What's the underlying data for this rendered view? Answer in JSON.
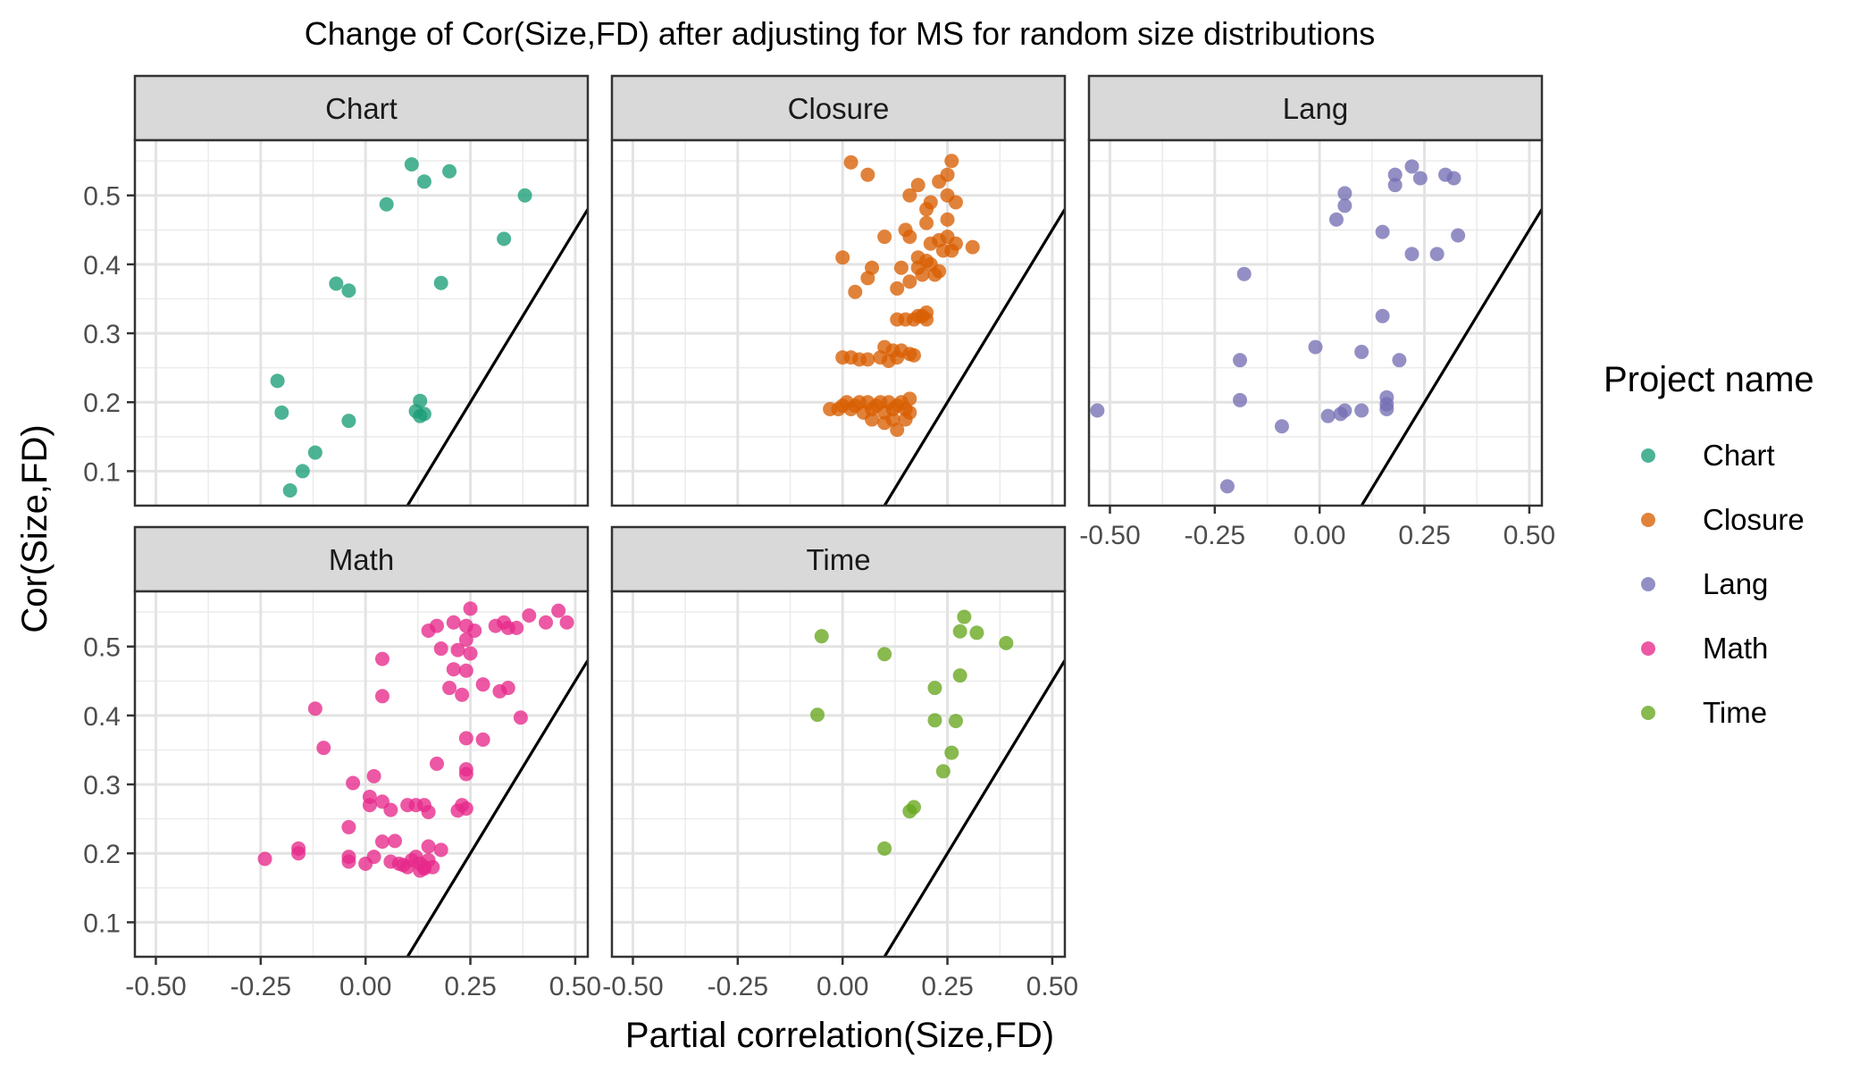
{
  "chart_data": {
    "type": "scatter",
    "title": "Change of Cor(Size,FD) after adjusting for MS for random size distributions",
    "xlabel": "Partial correlation(Size,FD)",
    "ylabel": "Cor(Size,FD)",
    "xlim": [
      -0.55,
      0.53
    ],
    "ylim": [
      0.05,
      0.58
    ],
    "x_ticks": [
      -0.5,
      -0.25,
      0.0,
      0.25,
      0.5
    ],
    "x_tick_labels": [
      "-0.50",
      "-0.25",
      "0.00",
      "0.25",
      "0.50"
    ],
    "y_ticks": [
      0.1,
      0.2,
      0.3,
      0.4,
      0.5
    ],
    "y_tick_labels": [
      "0.1",
      "0.2",
      "0.3",
      "0.4",
      "0.5"
    ],
    "grid": true,
    "reference_line": {
      "intercept": -0.05,
      "slope": 1
    },
    "legend": {
      "title": "Project name",
      "position": "right"
    },
    "facets": [
      "Chart",
      "Closure",
      "Lang",
      "Math",
      "Time"
    ],
    "series": [
      {
        "name": "Chart",
        "color": "#1B9E77",
        "points": [
          [
            0.11,
            0.545
          ],
          [
            0.14,
            0.52
          ],
          [
            0.2,
            0.535
          ],
          [
            0.38,
            0.5
          ],
          [
            0.05,
            0.487
          ],
          [
            0.33,
            0.437
          ],
          [
            -0.07,
            0.372
          ],
          [
            -0.04,
            0.362
          ],
          [
            0.18,
            0.373
          ],
          [
            -0.21,
            0.231
          ],
          [
            -0.2,
            0.185
          ],
          [
            0.13,
            0.202
          ],
          [
            0.12,
            0.187
          ],
          [
            0.13,
            0.18
          ],
          [
            0.14,
            0.183
          ],
          [
            -0.04,
            0.173
          ],
          [
            -0.12,
            0.127
          ],
          [
            -0.15,
            0.1
          ],
          [
            -0.18,
            0.072
          ]
        ]
      },
      {
        "name": "Closure",
        "color": "#D95F02",
        "points": [
          [
            0.02,
            0.548
          ],
          [
            0.06,
            0.53
          ],
          [
            0.26,
            0.55
          ],
          [
            0.23,
            0.52
          ],
          [
            0.18,
            0.515
          ],
          [
            0.25,
            0.53
          ],
          [
            0.16,
            0.5
          ],
          [
            0.25,
            0.5
          ],
          [
            0.27,
            0.49
          ],
          [
            0.21,
            0.49
          ],
          [
            0.2,
            0.48
          ],
          [
            0.15,
            0.45
          ],
          [
            0.2,
            0.46
          ],
          [
            0.25,
            0.465
          ],
          [
            0.1,
            0.44
          ],
          [
            0.16,
            0.44
          ],
          [
            0.21,
            0.43
          ],
          [
            0.23,
            0.435
          ],
          [
            0.25,
            0.44
          ],
          [
            0.27,
            0.43
          ],
          [
            0.24,
            0.42
          ],
          [
            0.26,
            0.42
          ],
          [
            0.31,
            0.425
          ],
          [
            0.18,
            0.41
          ],
          [
            0.2,
            0.405
          ],
          [
            0.0,
            0.41
          ],
          [
            0.07,
            0.395
          ],
          [
            0.14,
            0.395
          ],
          [
            0.18,
            0.395
          ],
          [
            0.21,
            0.4
          ],
          [
            0.23,
            0.39
          ],
          [
            0.19,
            0.385
          ],
          [
            0.06,
            0.38
          ],
          [
            0.03,
            0.36
          ],
          [
            0.22,
            0.385
          ],
          [
            0.13,
            0.365
          ],
          [
            0.16,
            0.375
          ],
          [
            0.17,
            0.32
          ],
          [
            0.19,
            0.325
          ],
          [
            0.2,
            0.33
          ],
          [
            0.18,
            0.325
          ],
          [
            0.13,
            0.32
          ],
          [
            0.15,
            0.32
          ],
          [
            0.2,
            0.32
          ],
          [
            0.1,
            0.28
          ],
          [
            0.12,
            0.275
          ],
          [
            0.14,
            0.275
          ],
          [
            0.16,
            0.27
          ],
          [
            0.17,
            0.268
          ],
          [
            0.0,
            0.265
          ],
          [
            0.02,
            0.265
          ],
          [
            0.04,
            0.262
          ],
          [
            0.06,
            0.262
          ],
          [
            0.09,
            0.265
          ],
          [
            0.11,
            0.26
          ],
          [
            0.13,
            0.265
          ],
          [
            -0.03,
            0.19
          ],
          [
            -0.01,
            0.19
          ],
          [
            0.0,
            0.195
          ],
          [
            0.01,
            0.2
          ],
          [
            0.02,
            0.19
          ],
          [
            0.03,
            0.195
          ],
          [
            0.04,
            0.2
          ],
          [
            0.05,
            0.185
          ],
          [
            0.06,
            0.2
          ],
          [
            0.07,
            0.19
          ],
          [
            0.08,
            0.195
          ],
          [
            0.09,
            0.2
          ],
          [
            0.1,
            0.185
          ],
          [
            0.11,
            0.2
          ],
          [
            0.12,
            0.19
          ],
          [
            0.13,
            0.195
          ],
          [
            0.14,
            0.2
          ],
          [
            0.15,
            0.19
          ],
          [
            0.16,
            0.185
          ],
          [
            0.07,
            0.175
          ],
          [
            0.1,
            0.17
          ],
          [
            0.12,
            0.175
          ],
          [
            0.15,
            0.175
          ],
          [
            0.13,
            0.16
          ],
          [
            0.16,
            0.205
          ]
        ]
      },
      {
        "name": "Lang",
        "color": "#7570B3",
        "points": [
          [
            0.22,
            0.542
          ],
          [
            0.18,
            0.53
          ],
          [
            0.24,
            0.525
          ],
          [
            0.3,
            0.53
          ],
          [
            0.32,
            0.525
          ],
          [
            0.18,
            0.515
          ],
          [
            0.06,
            0.503
          ],
          [
            0.06,
            0.485
          ],
          [
            0.04,
            0.465
          ],
          [
            0.15,
            0.447
          ],
          [
            0.33,
            0.442
          ],
          [
            0.22,
            0.415
          ],
          [
            0.28,
            0.415
          ],
          [
            -0.18,
            0.386
          ],
          [
            0.15,
            0.325
          ],
          [
            -0.01,
            0.28
          ],
          [
            0.1,
            0.273
          ],
          [
            -0.19,
            0.261
          ],
          [
            0.19,
            0.261
          ],
          [
            -0.19,
            0.203
          ],
          [
            0.16,
            0.207
          ],
          [
            0.16,
            0.197
          ],
          [
            0.16,
            0.19
          ],
          [
            0.1,
            0.188
          ],
          [
            0.06,
            0.188
          ],
          [
            0.05,
            0.183
          ],
          [
            0.02,
            0.18
          ],
          [
            -0.53,
            0.188
          ],
          [
            -0.09,
            0.165
          ],
          [
            -0.22,
            0.078
          ]
        ]
      },
      {
        "name": "Math",
        "color": "#E7298A",
        "points": [
          [
            0.25,
            0.555
          ],
          [
            0.46,
            0.552
          ],
          [
            0.21,
            0.535
          ],
          [
            0.24,
            0.53
          ],
          [
            0.31,
            0.53
          ],
          [
            0.33,
            0.535
          ],
          [
            0.39,
            0.545
          ],
          [
            0.43,
            0.535
          ],
          [
            0.48,
            0.535
          ],
          [
            0.15,
            0.523
          ],
          [
            0.17,
            0.53
          ],
          [
            0.26,
            0.523
          ],
          [
            0.34,
            0.527
          ],
          [
            0.36,
            0.527
          ],
          [
            0.18,
            0.497
          ],
          [
            0.22,
            0.495
          ],
          [
            0.24,
            0.51
          ],
          [
            0.25,
            0.49
          ],
          [
            0.04,
            0.482
          ],
          [
            0.21,
            0.467
          ],
          [
            0.24,
            0.465
          ],
          [
            0.28,
            0.445
          ],
          [
            0.2,
            0.44
          ],
          [
            0.32,
            0.435
          ],
          [
            0.34,
            0.44
          ],
          [
            0.04,
            0.428
          ],
          [
            0.23,
            0.43
          ],
          [
            -0.12,
            0.41
          ],
          [
            0.37,
            0.397
          ],
          [
            0.24,
            0.367
          ],
          [
            0.28,
            0.365
          ],
          [
            -0.1,
            0.353
          ],
          [
            0.17,
            0.33
          ],
          [
            0.24,
            0.322
          ],
          [
            0.24,
            0.315
          ],
          [
            0.02,
            0.312
          ],
          [
            -0.03,
            0.302
          ],
          [
            0.01,
            0.282
          ],
          [
            0.04,
            0.275
          ],
          [
            0.01,
            0.27
          ],
          [
            0.06,
            0.263
          ],
          [
            0.1,
            0.27
          ],
          [
            0.12,
            0.27
          ],
          [
            0.14,
            0.27
          ],
          [
            0.15,
            0.26
          ],
          [
            0.23,
            0.27
          ],
          [
            0.24,
            0.265
          ],
          [
            0.22,
            0.262
          ],
          [
            -0.04,
            0.238
          ],
          [
            0.04,
            0.217
          ],
          [
            0.07,
            0.218
          ],
          [
            0.15,
            0.21
          ],
          [
            0.18,
            0.205
          ],
          [
            -0.16,
            0.207
          ],
          [
            -0.16,
            0.2
          ],
          [
            -0.04,
            0.195
          ],
          [
            -0.04,
            0.188
          ],
          [
            -0.24,
            0.192
          ],
          [
            0.0,
            0.185
          ],
          [
            0.02,
            0.195
          ],
          [
            0.06,
            0.188
          ],
          [
            0.08,
            0.185
          ],
          [
            0.09,
            0.183
          ],
          [
            0.1,
            0.18
          ],
          [
            0.11,
            0.19
          ],
          [
            0.12,
            0.195
          ],
          [
            0.13,
            0.185
          ],
          [
            0.14,
            0.178
          ],
          [
            0.15,
            0.19
          ],
          [
            0.16,
            0.18
          ],
          [
            0.13,
            0.175
          ],
          [
            0.14,
            0.18
          ]
        ]
      },
      {
        "name": "Time",
        "color": "#66A61E",
        "points": [
          [
            0.29,
            0.543
          ],
          [
            -0.05,
            0.515
          ],
          [
            0.28,
            0.522
          ],
          [
            0.32,
            0.52
          ],
          [
            0.39,
            0.505
          ],
          [
            0.1,
            0.489
          ],
          [
            0.28,
            0.458
          ],
          [
            0.22,
            0.44
          ],
          [
            -0.06,
            0.401
          ],
          [
            0.22,
            0.393
          ],
          [
            0.27,
            0.392
          ],
          [
            0.26,
            0.346
          ],
          [
            0.24,
            0.319
          ],
          [
            0.17,
            0.267
          ],
          [
            0.16,
            0.261
          ],
          [
            0.1,
            0.207
          ]
        ]
      }
    ]
  }
}
